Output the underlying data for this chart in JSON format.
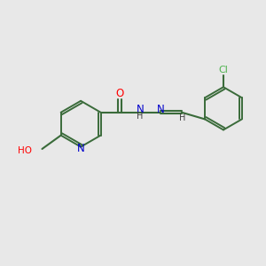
{
  "background_color": "#e8e8e8",
  "bond_color": "#3a6b3a",
  "atom_colors": {
    "O": "#ff0000",
    "N": "#0000cc",
    "Cl": "#4db34d",
    "H": "#404040"
  },
  "figsize": [
    3.0,
    3.0
  ],
  "dpi": 100
}
